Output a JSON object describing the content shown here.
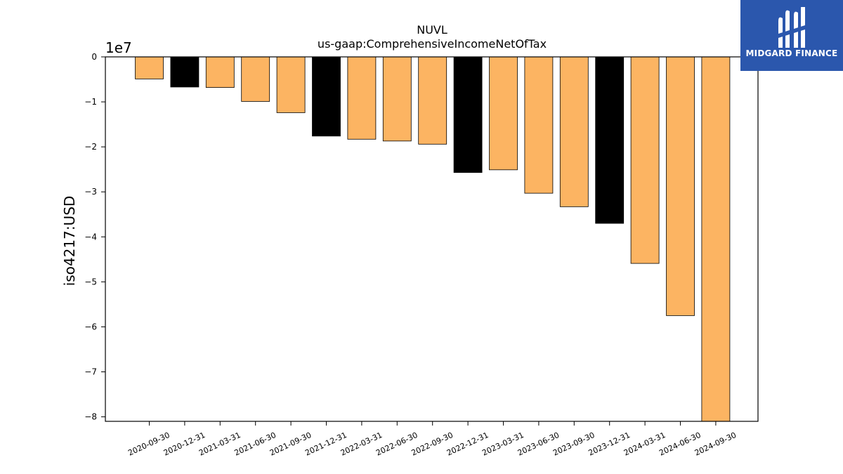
{
  "chart_data": {
    "type": "bar",
    "title": "NUVL",
    "subtitle": "us-gaap:ComprehensiveIncomeNetOfTax",
    "ylabel": "iso4217:USD",
    "xlabel": "",
    "offset_label": "1e7",
    "ylim": [
      -8.1,
      0
    ],
    "ytick_values": [
      0,
      -1,
      -2,
      -3,
      -4,
      -5,
      -6,
      -7,
      -8
    ],
    "ytick_labels": [
      "0",
      "−1",
      "−2",
      "−3",
      "−4",
      "−5",
      "−6",
      "−7",
      "−8"
    ],
    "categories": [
      "2020-09-30",
      "2020-12-31",
      "2021-03-31",
      "2021-06-30",
      "2021-09-30",
      "2021-12-31",
      "2022-03-31",
      "2022-06-30",
      "2022-09-30",
      "2022-12-31",
      "2023-03-31",
      "2023-06-30",
      "2023-09-30",
      "2023-12-31",
      "2024-03-31",
      "2024-06-30",
      "2024-09-30"
    ],
    "values": [
      -0.49,
      -0.67,
      -0.68,
      -0.99,
      -1.24,
      -1.76,
      -1.83,
      -1.87,
      -1.94,
      -2.57,
      -2.51,
      -3.03,
      -3.33,
      -3.7,
      -4.59,
      -5.75,
      -8.2
    ],
    "bar_colors": [
      "#fcb462",
      "#000000",
      "#fcb462",
      "#fcb462",
      "#fcb462",
      "#000000",
      "#fcb462",
      "#fcb462",
      "#fcb462",
      "#000000",
      "#fcb462",
      "#fcb462",
      "#fcb462",
      "#000000",
      "#fcb462",
      "#fcb462",
      "#fcb462"
    ],
    "grid": false
  },
  "logo": {
    "text": "MIDGARD FINANCE",
    "background": "#2b57ad"
  }
}
